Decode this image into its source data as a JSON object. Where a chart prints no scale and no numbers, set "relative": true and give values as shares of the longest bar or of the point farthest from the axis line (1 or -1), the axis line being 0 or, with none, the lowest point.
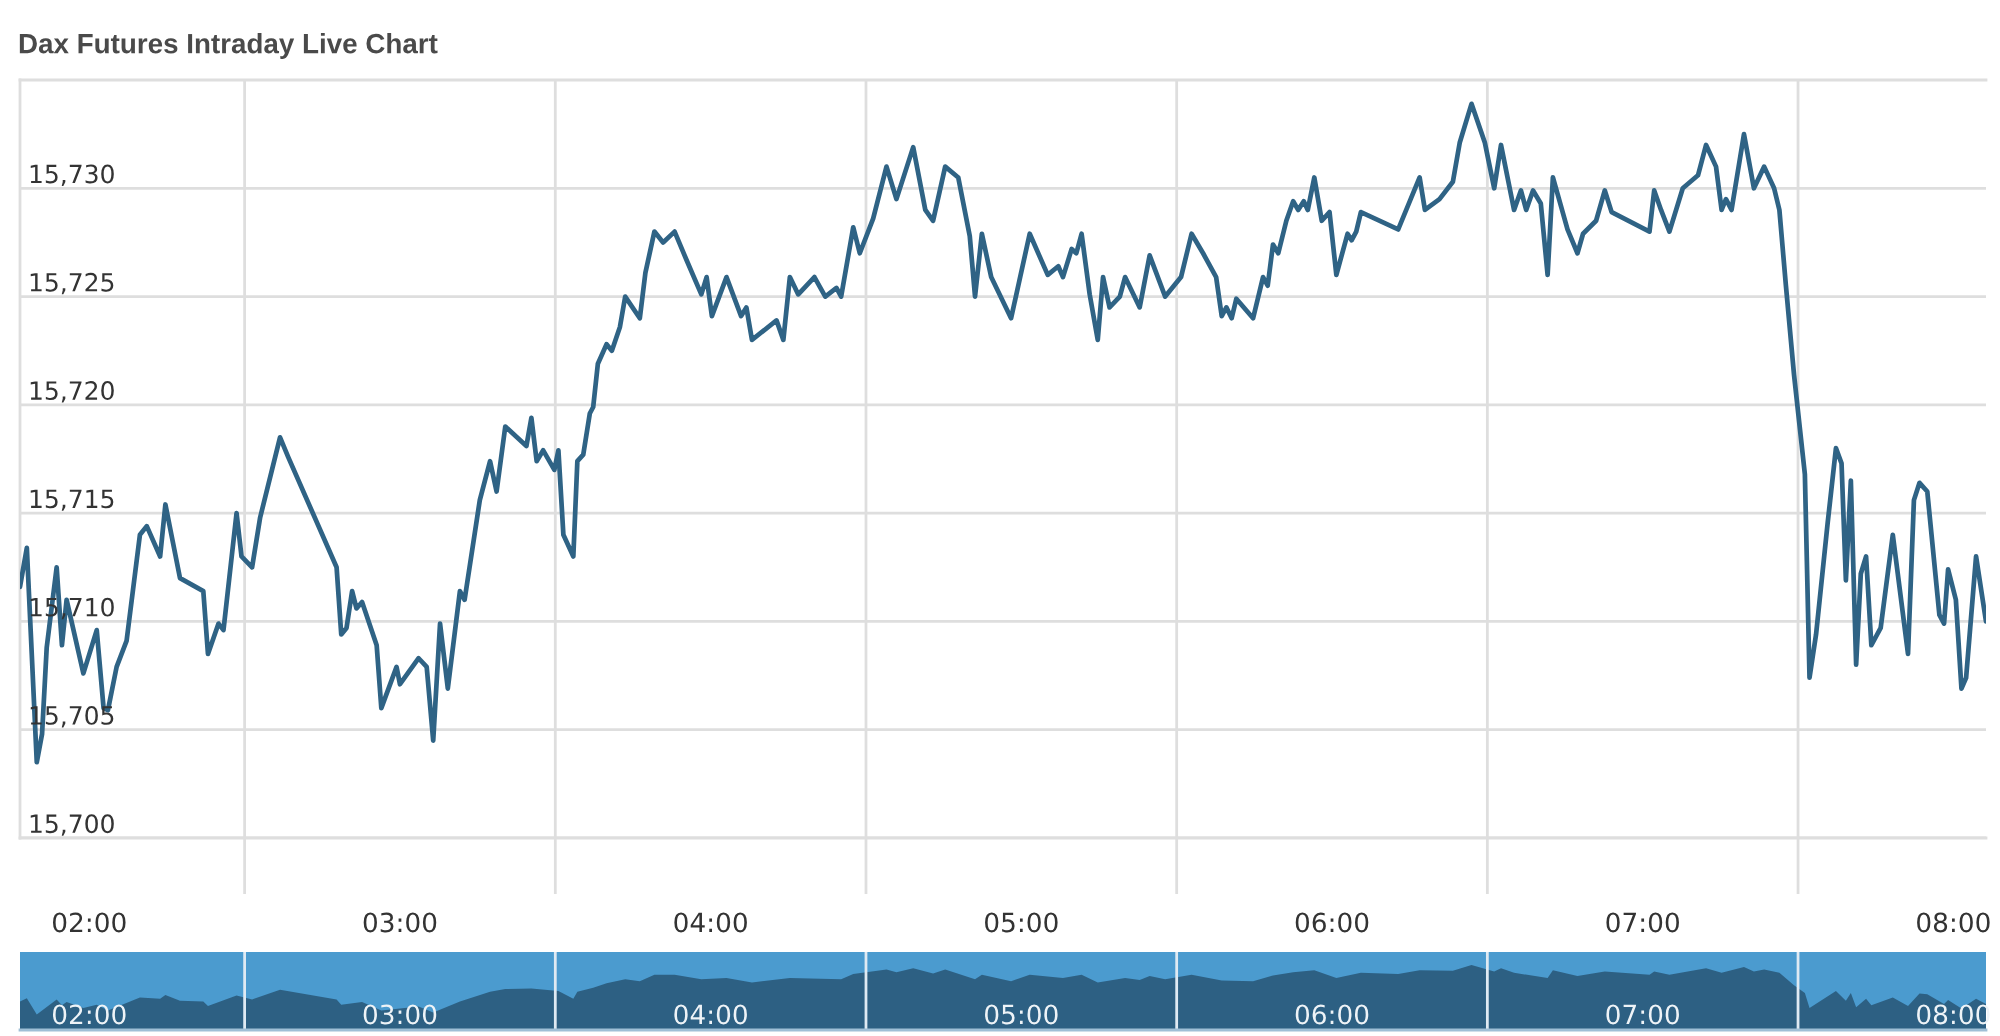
{
  "chart_data": [
    {
      "type": "line",
      "title": "Dax Futures Intraday Live Chart",
      "x": [
        1.777,
        1.799,
        1.831,
        1.848,
        1.863,
        1.895,
        1.912,
        1.927,
        1.981,
        2.024,
        2.046,
        2.06,
        2.088,
        2.12,
        2.163,
        2.185,
        2.228,
        2.245,
        2.292,
        2.367,
        2.382,
        2.416,
        2.432,
        2.474,
        2.49,
        2.524,
        2.55,
        2.614,
        2.64,
        2.796,
        2.811,
        2.828,
        2.846,
        2.86,
        2.878,
        2.925,
        2.94,
        2.989,
        3.0,
        3.06,
        3.086,
        3.107,
        3.129,
        3.154,
        3.193,
        3.208,
        3.257,
        3.29,
        3.311,
        3.339,
        3.407,
        3.423,
        3.44,
        3.461,
        3.497,
        3.51,
        3.526,
        3.558,
        3.571,
        3.59,
        3.611,
        3.622,
        3.637,
        3.665,
        3.682,
        3.708,
        3.725,
        3.772,
        3.79,
        3.819,
        3.847,
        3.884,
        3.922,
        3.97,
        3.987,
        4.004,
        4.051,
        4.098,
        4.115,
        4.133,
        4.212,
        4.234,
        4.255,
        4.282,
        4.334,
        4.369,
        4.405,
        4.42,
        4.459,
        4.48,
        4.523,
        4.566,
        4.598,
        4.652,
        4.691,
        4.716,
        4.755,
        4.797,
        4.834,
        4.851,
        4.873,
        4.903,
        4.967,
        5.027,
        5.085,
        5.119,
        5.134,
        5.162,
        5.177,
        5.194,
        5.22,
        5.246,
        5.263,
        5.284,
        5.317,
        5.334,
        5.381,
        5.413,
        5.463,
        5.514,
        5.548,
        5.585,
        5.627,
        5.645,
        5.66,
        5.677,
        5.692,
        5.746,
        5.778,
        5.793,
        5.81,
        5.827,
        5.853,
        5.875,
        5.891,
        5.909,
        5.922,
        5.943,
        5.967,
        5.992,
        6.014,
        6.05,
        6.063,
        6.078,
        6.093,
        6.213,
        6.282,
        6.299,
        6.346,
        6.389,
        6.411,
        6.449,
        6.492,
        6.522,
        6.544,
        6.586,
        6.608,
        6.625,
        6.647,
        6.672,
        6.694,
        6.711,
        6.758,
        6.79,
        6.808,
        6.85,
        6.878,
        6.9,
        7.022,
        7.037,
        7.059,
        7.086,
        7.129,
        7.178,
        7.204,
        7.236,
        7.254,
        7.268,
        7.286,
        7.326,
        7.358,
        7.391,
        7.423,
        7.44,
        7.461,
        7.487,
        7.522,
        7.537,
        7.558,
        7.595,
        7.622,
        7.64,
        7.654,
        7.67,
        7.687,
        7.702,
        7.719,
        7.736,
        7.766,
        7.805,
        7.854,
        7.873,
        7.891,
        7.916,
        7.955,
        7.97,
        7.983,
        8.008,
        8.026,
        8.041,
        8.073,
        8.105
      ],
      "series": [
        {
          "color": "#2f6385",
          "values": [
            15711.6,
            15713.4,
            15703.5,
            15704.8,
            15708.8,
            15712.5,
            15708.9,
            15711.0,
            15707.6,
            15709.6,
            15706.0,
            15705.9,
            15707.9,
            15709.1,
            15714.0,
            15714.4,
            15713.0,
            15715.4,
            15712.0,
            15711.4,
            15708.5,
            15709.9,
            15709.6,
            15715.0,
            15713.0,
            15712.5,
            15714.8,
            15718.5,
            15717.6,
            15712.5,
            15709.4,
            15709.7,
            15711.4,
            15710.6,
            15710.9,
            15708.9,
            15706.0,
            15707.9,
            15707.1,
            15708.3,
            15707.9,
            15704.5,
            15709.9,
            15706.9,
            15711.4,
            15711.0,
            15715.6,
            15717.4,
            15716.0,
            15719.0,
            15718.1,
            15719.4,
            15717.4,
            15717.9,
            15717.0,
            15717.9,
            15714.0,
            15713.0,
            15717.4,
            15717.7,
            15719.6,
            15719.9,
            15721.9,
            15722.8,
            15722.5,
            15723.6,
            15725.0,
            15724.0,
            15726.1,
            15728.0,
            15727.5,
            15728.0,
            15726.7,
            15725.1,
            15725.9,
            15724.1,
            15725.9,
            15724.1,
            15724.5,
            15723.0,
            15723.9,
            15723.0,
            15725.9,
            15725.1,
            15725.9,
            15725.0,
            15725.4,
            15725.0,
            15728.2,
            15727.0,
            15728.6,
            15731.0,
            15729.5,
            15731.9,
            15729.0,
            15728.5,
            15731.0,
            15730.5,
            15727.8,
            15725.0,
            15727.9,
            15725.9,
            15724.0,
            15727.9,
            15726.0,
            15726.4,
            15725.9,
            15727.2,
            15727.0,
            15727.9,
            15725.1,
            15723.0,
            15725.9,
            15724.5,
            15725.0,
            15725.9,
            15724.5,
            15726.9,
            15725.0,
            15725.9,
            15727.9,
            15727.0,
            15725.9,
            15724.1,
            15724.5,
            15724.0,
            15724.9,
            15724.0,
            15725.9,
            15725.5,
            15727.4,
            15727.0,
            15728.5,
            15729.4,
            15729.0,
            15729.4,
            15729.0,
            15730.5,
            15728.5,
            15728.9,
            15726.0,
            15727.9,
            15727.6,
            15728.0,
            15728.9,
            15728.1,
            15730.5,
            15729.0,
            15729.5,
            15730.3,
            15732.1,
            15733.9,
            15732.1,
            15730.0,
            15732.0,
            15729.0,
            15729.9,
            15729.0,
            15729.9,
            15729.3,
            15726.0,
            15730.5,
            15728.1,
            15727.0,
            15727.9,
            15728.5,
            15729.9,
            15728.9,
            15728.0,
            15729.9,
            15729.0,
            15728.0,
            15730.0,
            15730.6,
            15732.0,
            15731.0,
            15729.0,
            15729.5,
            15729.0,
            15732.5,
            15730.0,
            15731.0,
            15730.0,
            15729.0,
            15725.5,
            15721.4,
            15716.8,
            15707.4,
            15709.4,
            15714.5,
            15718.0,
            15717.3,
            15711.9,
            15716.5,
            15708.0,
            15712.2,
            15713.0,
            15708.9,
            15709.7,
            15714.0,
            15708.5,
            15715.6,
            15716.4,
            15716.0,
            15710.3,
            15709.9,
            15712.4,
            15711.0,
            15706.9,
            15707.4,
            15713.0,
            15710.0
          ]
        }
      ],
      "xlim": [
        1.777,
        8.105
      ],
      "xticks": [
        {
          "value": 2,
          "label": "02:00"
        },
        {
          "value": 2.5,
          "label": null
        },
        {
          "value": 3,
          "label": "03:00"
        },
        {
          "value": 3.5,
          "label": null
        },
        {
          "value": 4,
          "label": "04:00"
        },
        {
          "value": 4.5,
          "label": null
        },
        {
          "value": 5,
          "label": "05:00"
        },
        {
          "value": 5.5,
          "label": null
        },
        {
          "value": 6,
          "label": "06:00"
        },
        {
          "value": 6.5,
          "label": null
        },
        {
          "value": 7,
          "label": "07:00"
        },
        {
          "value": 7.5,
          "label": null
        },
        {
          "value": 8,
          "label": "08:00"
        }
      ],
      "ylim": [
        15700,
        15735
      ],
      "yticks": [
        {
          "value": 15700,
          "label": "15,700"
        },
        {
          "value": 15705,
          "label": "15,705"
        },
        {
          "value": 15710,
          "label": "15,710"
        },
        {
          "value": 15715,
          "label": "15,715"
        },
        {
          "value": 15720,
          "label": "15,720"
        },
        {
          "value": 15725,
          "label": "15,725"
        },
        {
          "value": 15730,
          "label": "15,730"
        }
      ],
      "grid": true
    },
    {
      "type": "area",
      "relative": true,
      "x": [
        1.777,
        1.799,
        1.831,
        1.895,
        1.912,
        1.927,
        1.981,
        2.024,
        2.06,
        2.163,
        2.228,
        2.245,
        2.292,
        2.367,
        2.382,
        2.474,
        2.524,
        2.614,
        2.796,
        2.811,
        2.878,
        2.94,
        3.06,
        3.107,
        3.193,
        3.29,
        3.339,
        3.423,
        3.51,
        3.558,
        3.571,
        3.622,
        3.665,
        3.725,
        3.772,
        3.819,
        3.884,
        3.97,
        4.051,
        4.133,
        4.255,
        4.42,
        4.459,
        4.566,
        4.598,
        4.652,
        4.716,
        4.755,
        4.851,
        4.873,
        4.967,
        5.027,
        5.134,
        5.194,
        5.246,
        5.334,
        5.381,
        5.413,
        5.463,
        5.548,
        5.645,
        5.746,
        5.81,
        5.875,
        5.943,
        6.014,
        6.093,
        6.213,
        6.282,
        6.389,
        6.449,
        6.522,
        6.544,
        6.586,
        6.694,
        6.711,
        6.79,
        6.878,
        7.022,
        7.037,
        7.086,
        7.204,
        7.254,
        7.326,
        7.358,
        7.391,
        7.44,
        7.487,
        7.522,
        7.537,
        7.622,
        7.654,
        7.67,
        7.687,
        7.719,
        7.736,
        7.805,
        7.854,
        7.891,
        7.916,
        7.97,
        7.983,
        8.026,
        8.073,
        8.105
      ],
      "series": [
        {
          "color": "#2d6083",
          "values": [
            0.44,
            0.49,
            0.24,
            0.47,
            0.38,
            0.43,
            0.34,
            0.39,
            0.3,
            0.5,
            0.48,
            0.54,
            0.45,
            0.44,
            0.37,
            0.53,
            0.47,
            0.62,
            0.47,
            0.39,
            0.43,
            0.3,
            0.36,
            0.27,
            0.44,
            0.59,
            0.63,
            0.64,
            0.6,
            0.48,
            0.59,
            0.65,
            0.72,
            0.78,
            0.75,
            0.85,
            0.85,
            0.78,
            0.8,
            0.73,
            0.8,
            0.78,
            0.86,
            0.93,
            0.89,
            0.95,
            0.87,
            0.93,
            0.78,
            0.85,
            0.75,
            0.85,
            0.8,
            0.85,
            0.73,
            0.8,
            0.77,
            0.83,
            0.78,
            0.85,
            0.76,
            0.75,
            0.84,
            0.89,
            0.92,
            0.8,
            0.88,
            0.86,
            0.92,
            0.91,
            1.0,
            0.9,
            0.95,
            0.88,
            0.8,
            0.92,
            0.83,
            0.9,
            0.85,
            0.9,
            0.85,
            0.95,
            0.88,
            0.97,
            0.9,
            0.93,
            0.88,
            0.69,
            0.57,
            0.34,
            0.6,
            0.45,
            0.57,
            0.35,
            0.48,
            0.38,
            0.5,
            0.37,
            0.56,
            0.55,
            0.4,
            0.46,
            0.33,
            0.48,
            0.4
          ]
        }
      ],
      "xlim": [
        1.777,
        8.105
      ],
      "xticks": [
        {
          "value": 2,
          "label": "02:00"
        },
        {
          "value": 2.5,
          "label": null
        },
        {
          "value": 3,
          "label": "03:00"
        },
        {
          "value": 3.5,
          "label": null
        },
        {
          "value": 4,
          "label": "04:00"
        },
        {
          "value": 4.5,
          "label": null
        },
        {
          "value": 5,
          "label": "05:00"
        },
        {
          "value": 5.5,
          "label": null
        },
        {
          "value": 6,
          "label": "06:00"
        },
        {
          "value": 6.5,
          "label": null
        },
        {
          "value": 7,
          "label": "07:00"
        },
        {
          "value": 7.5,
          "label": null
        },
        {
          "value": 8,
          "label": "08:00"
        }
      ],
      "tick_labels": "x",
      "grid": "x"
    }
  ]
}
